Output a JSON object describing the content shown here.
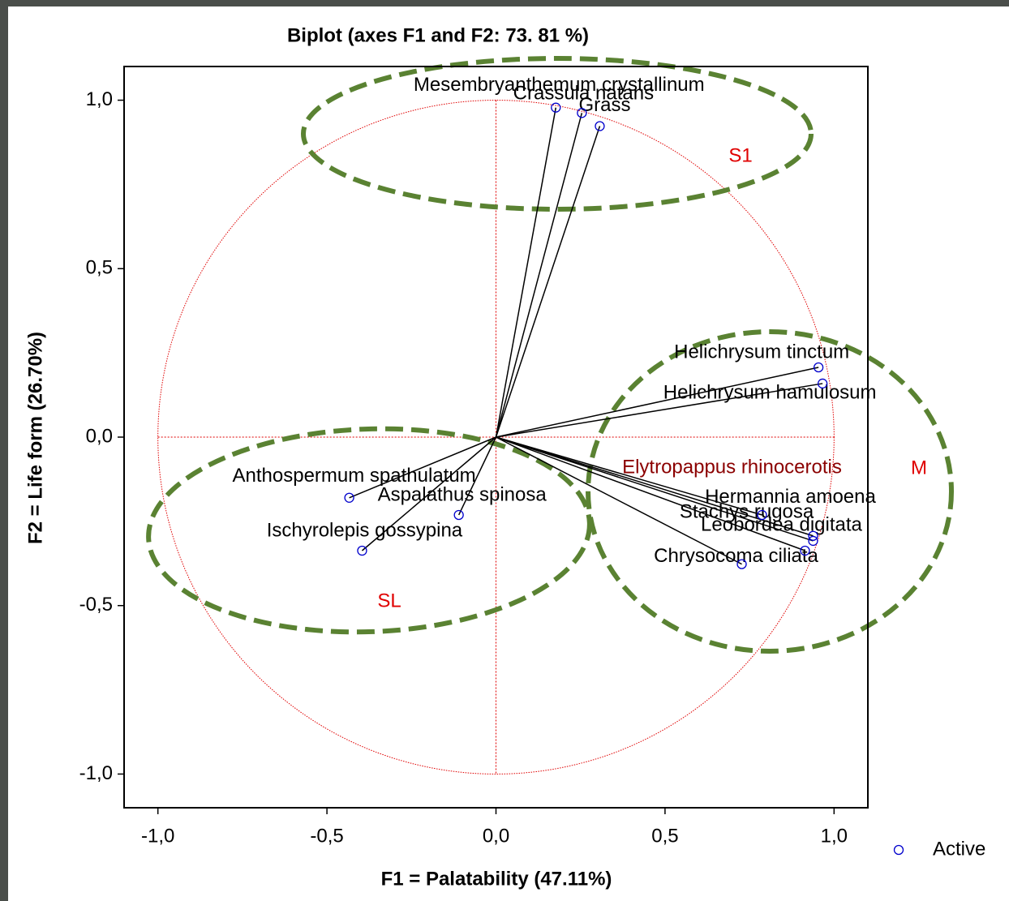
{
  "chart_data": {
    "type": "scatter",
    "title": "Biplot (axes F1 and F2: 73. 81 %)",
    "x_label": "F1 = Palatability (47.11%)",
    "y_label": "F2 = Life form (26.70%)",
    "xlim": [
      -1.1,
      1.1
    ],
    "ylim": [
      -1.1,
      1.1
    ],
    "xticks": [
      {
        "value": -1,
        "label": "-1,0"
      },
      {
        "value": -0.5,
        "label": "-0,5"
      },
      {
        "value": 0,
        "label": "0,0"
      },
      {
        "value": 0.5,
        "label": "0,5"
      },
      {
        "value": 1,
        "label": "1,0"
      }
    ],
    "yticks": [
      {
        "value": -1,
        "label": "-1,0"
      },
      {
        "value": -0.5,
        "label": "-0,5"
      },
      {
        "value": 0,
        "label": "0,0"
      },
      {
        "value": 0.5,
        "label": "0,5"
      },
      {
        "value": 1,
        "label": "1,0"
      }
    ],
    "series": [
      {
        "name": "Active",
        "color": "#0000cc",
        "labels": [
          "Mesembryanthemum crystallinum",
          "Crassula natans",
          "Grass",
          "Helichrysum tinctum",
          "Helichrysum hamulosum",
          "Elytropappus rhinocerotis",
          "Hermannia amoena",
          "Stachys rugosa",
          "Leobordea digitata",
          "Chrysocoma ciliata",
          "Anthospermum spathulatum",
          "Aspalathus spinosa",
          "Ischyrolepis gossypina"
        ],
        "x": [
          0.177,
          0.254,
          0.307,
          0.954,
          0.966,
          0.938,
          0.938,
          0.787,
          0.914,
          0.727,
          -0.434,
          -0.11,
          -0.396
        ],
        "values": [
          0.978,
          0.962,
          0.923,
          0.207,
          0.159,
          -0.308,
          -0.293,
          -0.231,
          -0.337,
          -0.377,
          -0.18,
          -0.231,
          -0.337
        ]
      }
    ],
    "annotations": [
      "S1",
      "SL",
      "M"
    ]
  }
}
